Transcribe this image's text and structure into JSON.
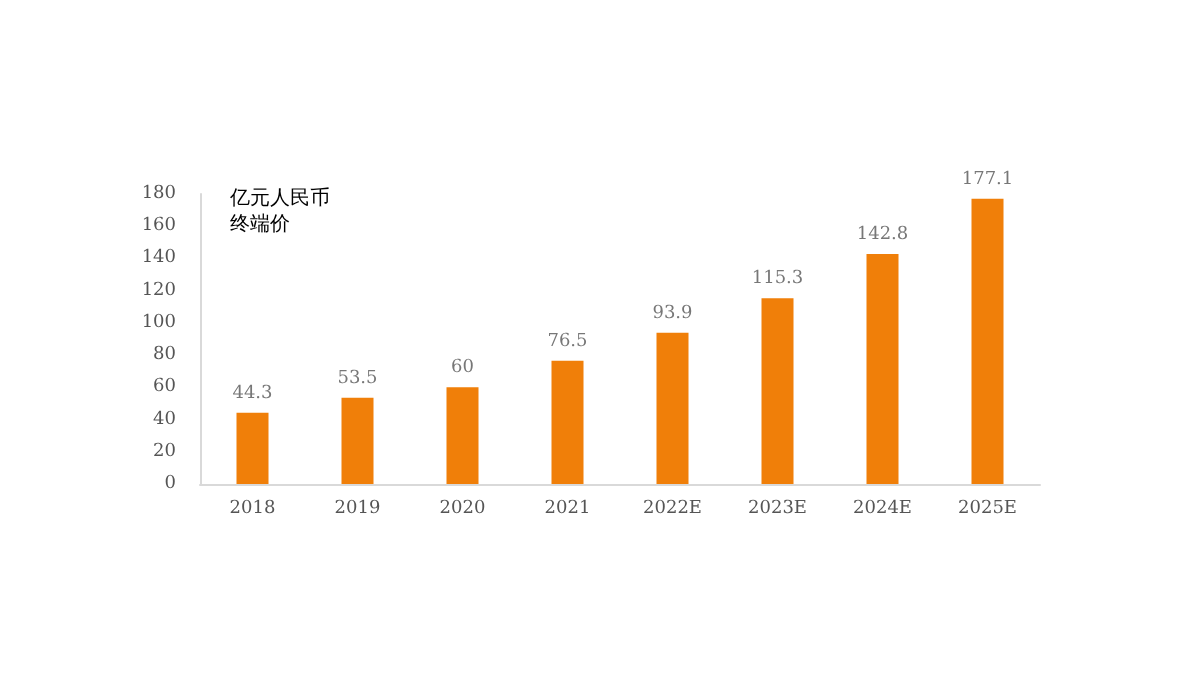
{
  "chart_data": {
    "type": "bar",
    "ylabel": "亿元人民币",
    "annotations": [
      "终端价"
    ],
    "categories": [
      "2018",
      "2019",
      "2020",
      "2021",
      "2022E",
      "2023E",
      "2024E",
      "2025E"
    ],
    "values": [
      44.3,
      53.5,
      60,
      76.5,
      93.9,
      115.3,
      142.8,
      177.1
    ],
    "color": "#f07f09",
    "ylim": [
      0,
      180
    ],
    "yticks": [
      0,
      20,
      40,
      60,
      80,
      100,
      120,
      140,
      160,
      180
    ],
    "grid": false,
    "data_labels": true
  }
}
